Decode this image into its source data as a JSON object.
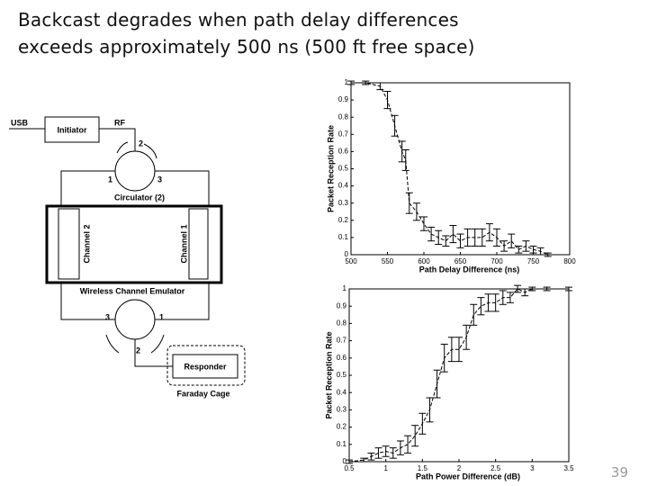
{
  "title_lines": [
    "Backcast degrades when path delay differences",
    "exceeds approximately 500 ns (500 ft free space)"
  ],
  "page_number": "39",
  "diagram": {
    "usb": "USB",
    "initiator": "Initiator",
    "rf": "RF",
    "top_port_2": "2",
    "top_port_1": "1",
    "top_port_3": "3",
    "circulator": "Circulator (2)",
    "channel_2": "Channel 2",
    "channel_1": "Channel 1",
    "emulator": "Wireless Channel Emulator",
    "bottom_port_3": "3",
    "bottom_port_1": "1",
    "bottom_port_2": "2",
    "responder": "Responder",
    "cage": "Faraday Cage"
  },
  "chart_data": [
    {
      "type": "line",
      "x_label": "Path Delay Difference (ns)",
      "y_label": "Packet Reception Rate",
      "x": [
        500,
        520,
        540,
        550,
        560,
        570,
        575,
        580,
        590,
        600,
        610,
        620,
        630,
        640,
        650,
        660,
        670,
        680,
        690,
        700,
        710,
        720,
        730,
        740,
        750,
        760,
        770
      ],
      "values": [
        1.0,
        1.0,
        0.98,
        0.9,
        0.75,
        0.6,
        0.55,
        0.3,
        0.25,
        0.18,
        0.12,
        0.1,
        0.08,
        0.12,
        0.08,
        0.1,
        0.1,
        0.1,
        0.13,
        0.1,
        0.05,
        0.08,
        0.03,
        0.05,
        0.03,
        0.02,
        0
      ],
      "errors": [
        0.01,
        0.01,
        0.02,
        0.05,
        0.06,
        0.06,
        0.06,
        0.06,
        0.05,
        0.04,
        0.04,
        0.04,
        0.03,
        0.05,
        0.04,
        0.05,
        0.05,
        0.05,
        0.05,
        0.05,
        0.03,
        0.04,
        0.02,
        0.03,
        0.02,
        0.02,
        0.01
      ],
      "color": "#000000",
      "xlim": [
        500,
        800
      ],
      "ylim": [
        0,
        1
      ],
      "xticks": [
        500,
        550,
        600,
        650,
        700,
        750,
        800
      ],
      "yticks": [
        0,
        0.1,
        0.2,
        0.3,
        0.4,
        0.5,
        0.6,
        0.7,
        0.8,
        0.9,
        1
      ]
    },
    {
      "type": "line",
      "x_label": "Path Power Difference (dB)",
      "y_label": "Packet Reception Rate",
      "x": [
        0.5,
        0.7,
        0.8,
        0.9,
        1.0,
        1.1,
        1.2,
        1.3,
        1.4,
        1.5,
        1.6,
        1.7,
        1.8,
        1.9,
        2.0,
        2.1,
        2.2,
        2.3,
        2.4,
        2.5,
        2.6,
        2.7,
        2.8,
        2.9,
        3.0,
        3.2,
        3.5
      ],
      "values": [
        0,
        0.01,
        0.03,
        0.05,
        0.06,
        0.05,
        0.08,
        0.1,
        0.15,
        0.22,
        0.3,
        0.45,
        0.6,
        0.65,
        0.65,
        0.72,
        0.85,
        0.9,
        0.92,
        0.92,
        0.95,
        0.95,
        1.0,
        0.98,
        1.0,
        1.0,
        1.0
      ],
      "errors": [
        0.01,
        0.01,
        0.02,
        0.03,
        0.03,
        0.03,
        0.04,
        0.05,
        0.06,
        0.06,
        0.07,
        0.08,
        0.08,
        0.07,
        0.07,
        0.07,
        0.06,
        0.05,
        0.05,
        0.05,
        0.04,
        0.03,
        0.02,
        0.02,
        0.01,
        0.01,
        0.01
      ],
      "color": "#000000",
      "xlim": [
        0.5,
        3.5
      ],
      "ylim": [
        0,
        1
      ],
      "xticks": [
        0.5,
        1,
        1.5,
        2,
        2.5,
        3,
        3.5
      ],
      "yticks": [
        0,
        0.1,
        0.2,
        0.3,
        0.4,
        0.5,
        0.6,
        0.7,
        0.8,
        0.9,
        1
      ]
    }
  ]
}
